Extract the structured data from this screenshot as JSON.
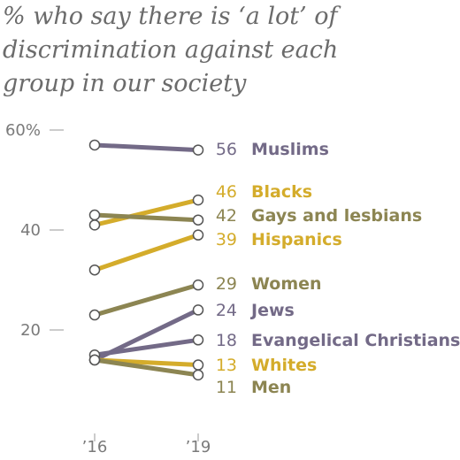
{
  "title_lines": [
    "% who say there is ‘a lot’ of",
    "discrimination against each",
    "group in our society"
  ],
  "chart_data": {
    "type": "line",
    "title": "% who say there is ‘a lot’ of discrimination against each group in our society",
    "x": [
      "’16",
      "’19"
    ],
    "ylim": [
      0,
      60
    ],
    "y_ticks": [
      {
        "value": 60,
        "label": "60%"
      },
      {
        "value": 40,
        "label": "40"
      },
      {
        "value": 20,
        "label": "20"
      }
    ],
    "colors": {
      "purple": "#736a87",
      "gold": "#d4ac2b",
      "olive": "#8c8552"
    },
    "series": [
      {
        "name": "Muslims",
        "values": [
          57,
          56
        ],
        "value_label": "56",
        "color": "#736a87"
      },
      {
        "name": "Blacks",
        "values": [
          41,
          46
        ],
        "value_label": "46",
        "color": "#d4ac2b"
      },
      {
        "name": "Gays and lesbians",
        "values": [
          43,
          42
        ],
        "value_label": "42",
        "color": "#8c8552"
      },
      {
        "name": "Hispanics",
        "values": [
          32,
          39
        ],
        "value_label": "39",
        "color": "#d4ac2b"
      },
      {
        "name": "Women",
        "values": [
          23,
          29
        ],
        "value_label": "29",
        "color": "#8c8552"
      },
      {
        "name": "Jews",
        "values": [
          14,
          24
        ],
        "value_label": "24",
        "color": "#736a87"
      },
      {
        "name": "Evangelical Christians",
        "values": [
          15,
          18
        ],
        "value_label": "18",
        "color": "#736a87"
      },
      {
        "name": "Whites",
        "values": [
          14,
          13
        ],
        "value_label": "13",
        "color": "#d4ac2b"
      },
      {
        "name": "Men",
        "values": [
          14,
          11
        ],
        "value_label": "11",
        "color": "#8c8552"
      }
    ]
  }
}
